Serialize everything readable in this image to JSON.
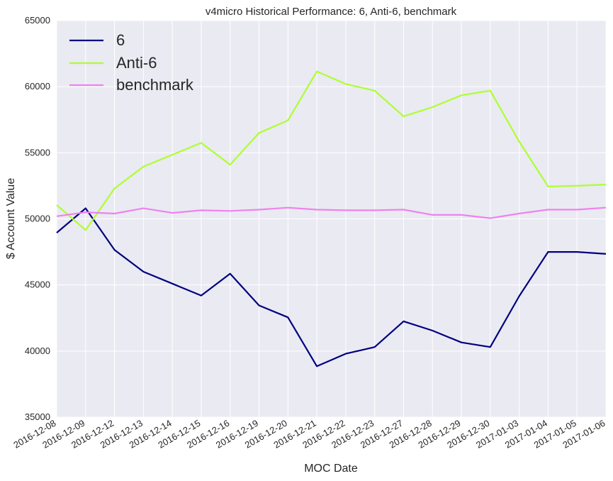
{
  "chart_data": {
    "type": "line",
    "title": "v4micro Historical Performance: 6, Anti-6, benchmark",
    "xlabel": "MOC Date",
    "ylabel": "$ Account Value",
    "ylim": [
      35000,
      65000
    ],
    "yticks": [
      "35000",
      "40000",
      "45000",
      "50000",
      "55000",
      "60000",
      "65000"
    ],
    "ytick_values": [
      35000,
      40000,
      45000,
      50000,
      55000,
      60000,
      65000
    ],
    "grid": true,
    "legend_position": "upper-left",
    "categories": [
      "2016-12-08",
      "2016-12-09",
      "2016-12-12",
      "2016-12-13",
      "2016-12-14",
      "2016-12-15",
      "2016-12-16",
      "2016-12-19",
      "2016-12-20",
      "2016-12-21",
      "2016-12-22",
      "2016-12-23",
      "2016-12-27",
      "2016-12-28",
      "2016-12-29",
      "2016-12-30",
      "2017-01-03",
      "2017-01-04",
      "2017-01-05",
      "2017-01-06"
    ],
    "series": [
      {
        "name": "6",
        "color": "#000080",
        "values": [
          48950,
          50800,
          47650,
          46000,
          45100,
          44200,
          45850,
          43450,
          42550,
          38850,
          39800,
          40300,
          42250,
          41550,
          40650,
          40300,
          44150,
          47500,
          47500,
          47350
        ]
      },
      {
        "name": "Anti-6",
        "color": "#adff2f",
        "values": [
          51050,
          49150,
          52300,
          53950,
          54850,
          55750,
          54100,
          56500,
          57450,
          61150,
          60200,
          59700,
          57750,
          58450,
          59350,
          59700,
          55850,
          52450,
          52500,
          52600
        ]
      },
      {
        "name": "benchmark",
        "color": "#ee82ee",
        "values": [
          50200,
          50500,
          50400,
          50800,
          50450,
          50650,
          50600,
          50700,
          50850,
          50700,
          50650,
          50650,
          50700,
          50300,
          50300,
          50050,
          50400,
          50700,
          50700,
          50850
        ]
      }
    ]
  }
}
